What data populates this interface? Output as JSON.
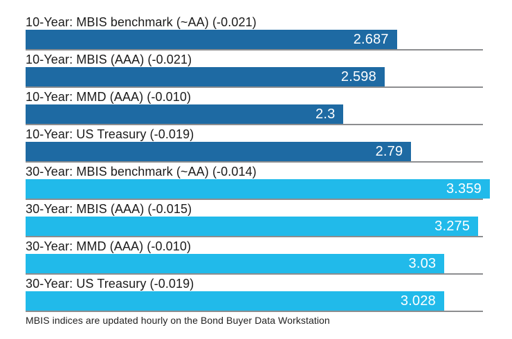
{
  "chart_data": {
    "type": "bar",
    "orientation": "horizontal",
    "title": "",
    "xlim": [
      0,
      3.359
    ],
    "grid": false,
    "legend_position": "none",
    "value_label_position": "inside-right",
    "bars": [
      {
        "label": "10-Year: MBIS benchmark (~AA) (-0.021)",
        "value": 2.687,
        "value_label": "2.687",
        "group": "10-year"
      },
      {
        "label": "10-Year: MBIS (AAA) (-0.021)",
        "value": 2.598,
        "value_label": "2.598",
        "group": "10-year"
      },
      {
        "label": "10-Year: MMD (AAA) (-0.010)",
        "value": 2.3,
        "value_label": "2.3",
        "group": "10-year"
      },
      {
        "label": "10-Year: US Treasury (-0.019)",
        "value": 2.79,
        "value_label": "2.79",
        "group": "10-year"
      },
      {
        "label": "30-Year: MBIS benchmark (~AA) (-0.014)",
        "value": 3.359,
        "value_label": "3.359",
        "group": "30-year"
      },
      {
        "label": "30-Year: MBIS (AAA) (-0.015)",
        "value": 3.275,
        "value_label": "3.275",
        "group": "30-year"
      },
      {
        "label": "30-Year: MMD (AAA) (-0.010)",
        "value": 3.03,
        "value_label": "3.03",
        "group": "30-year"
      },
      {
        "label": "30-Year: US Treasury (-0.019)",
        "value": 3.028,
        "value_label": "3.028",
        "group": "30-year"
      }
    ],
    "colors": {
      "10-year": "#1E6AA3",
      "30-year": "#21BAEA",
      "separator": "#8c8d8f",
      "label_text": "#1b1b1b",
      "value_text": "#ffffff"
    },
    "footnote": "MBIS indices are updated hourly on the Bond Buyer Data Workstation"
  }
}
